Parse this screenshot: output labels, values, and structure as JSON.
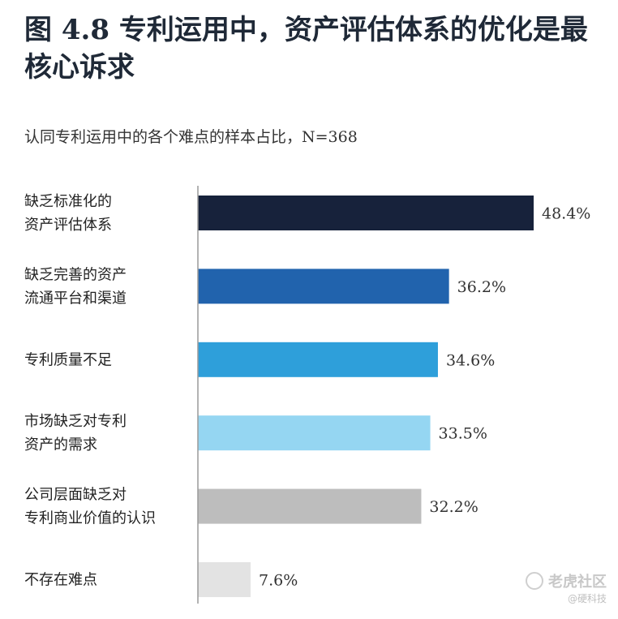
{
  "title": "图 4.8 专利运用中，资产评估体系的优化是最核心诉求",
  "subtitle": "认同专利运用中的各个难点的样本占比，N=368",
  "watermark": {
    "main": "老虎社区",
    "sub": "@硬科技",
    "icon": "tiger-logo-icon"
  },
  "chart_data": {
    "type": "bar",
    "orientation": "horizontal",
    "unit": "%",
    "xlim": [
      0,
      55
    ],
    "grid": false,
    "categories": [
      [
        "缺乏标准化的",
        "资产评估体系"
      ],
      [
        "缺乏完善的资产",
        "流通平台和渠道"
      ],
      [
        "专利质量不足"
      ],
      [
        "市场缺乏对专利",
        "资产的需求"
      ],
      [
        "公司层面缺乏对",
        "专利商业价值的认识"
      ],
      [
        "不存在难点"
      ]
    ],
    "values": [
      48.4,
      36.2,
      34.6,
      33.5,
      32.2,
      7.6
    ],
    "value_labels": [
      "48.4%",
      "36.2%",
      "34.6%",
      "33.5%",
      "32.2%",
      "7.6%"
    ],
    "colors": [
      "#17223b",
      "#2163ad",
      "#2e9fda",
      "#95d6f2",
      "#bdbdbd",
      "#e3e3e3"
    ]
  }
}
